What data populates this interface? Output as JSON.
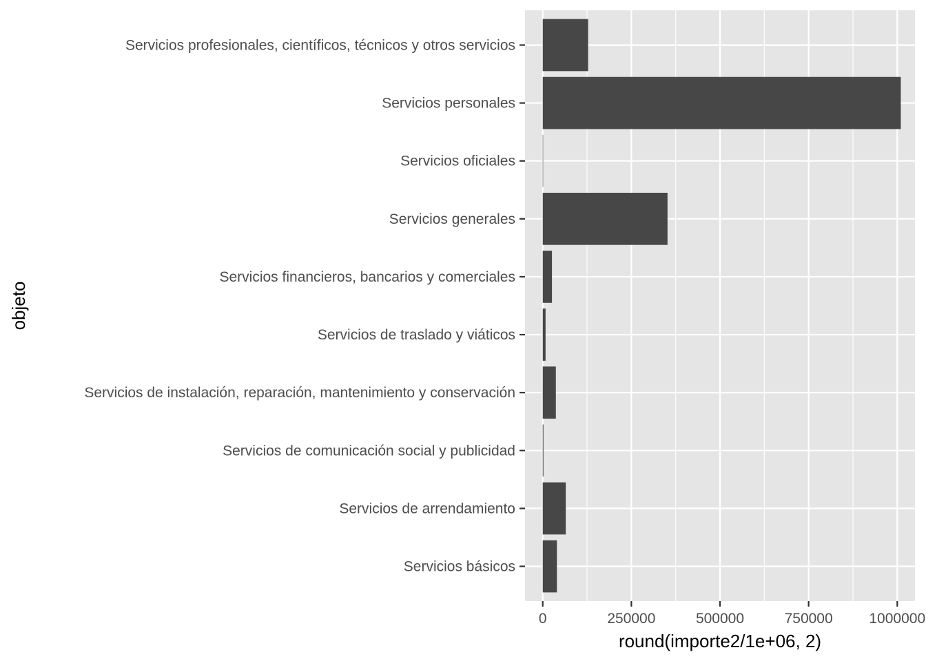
{
  "chart_data": {
    "type": "bar",
    "orientation": "horizontal",
    "xlabel": "round(importe2/1e+06, 2)",
    "ylabel": "objeto",
    "xlim": [
      -50000,
      1050000
    ],
    "x_ticks": [
      0,
      250000,
      500000,
      750000,
      1000000
    ],
    "x_tick_labels": [
      "0",
      "250000",
      "500000",
      "750000",
      "1000000"
    ],
    "categories": [
      "Servicios básicos",
      "Servicios de arrendamiento",
      "Servicios de comunicación social y publicidad",
      "Servicios de instalación, reparación, mantenimiento y conservación",
      "Servicios de traslado y viáticos",
      "Servicios financieros, bancarios y comerciales",
      "Servicios generales",
      "Servicios oficiales",
      "Servicios personales",
      "Servicios profesionales, científicos, técnicos y otros servicios"
    ],
    "values": [
      40000,
      65000,
      2000,
      37000,
      8000,
      26000,
      352000,
      1000,
      1010000,
      128000
    ],
    "colors": {
      "panel_background": "#e5e5e5",
      "grid_major": "#ffffff",
      "bar_fill": "#474747",
      "tick_text": "#4d4d4d",
      "tick_mark": "#333333"
    },
    "grid": true,
    "legend": "none"
  }
}
